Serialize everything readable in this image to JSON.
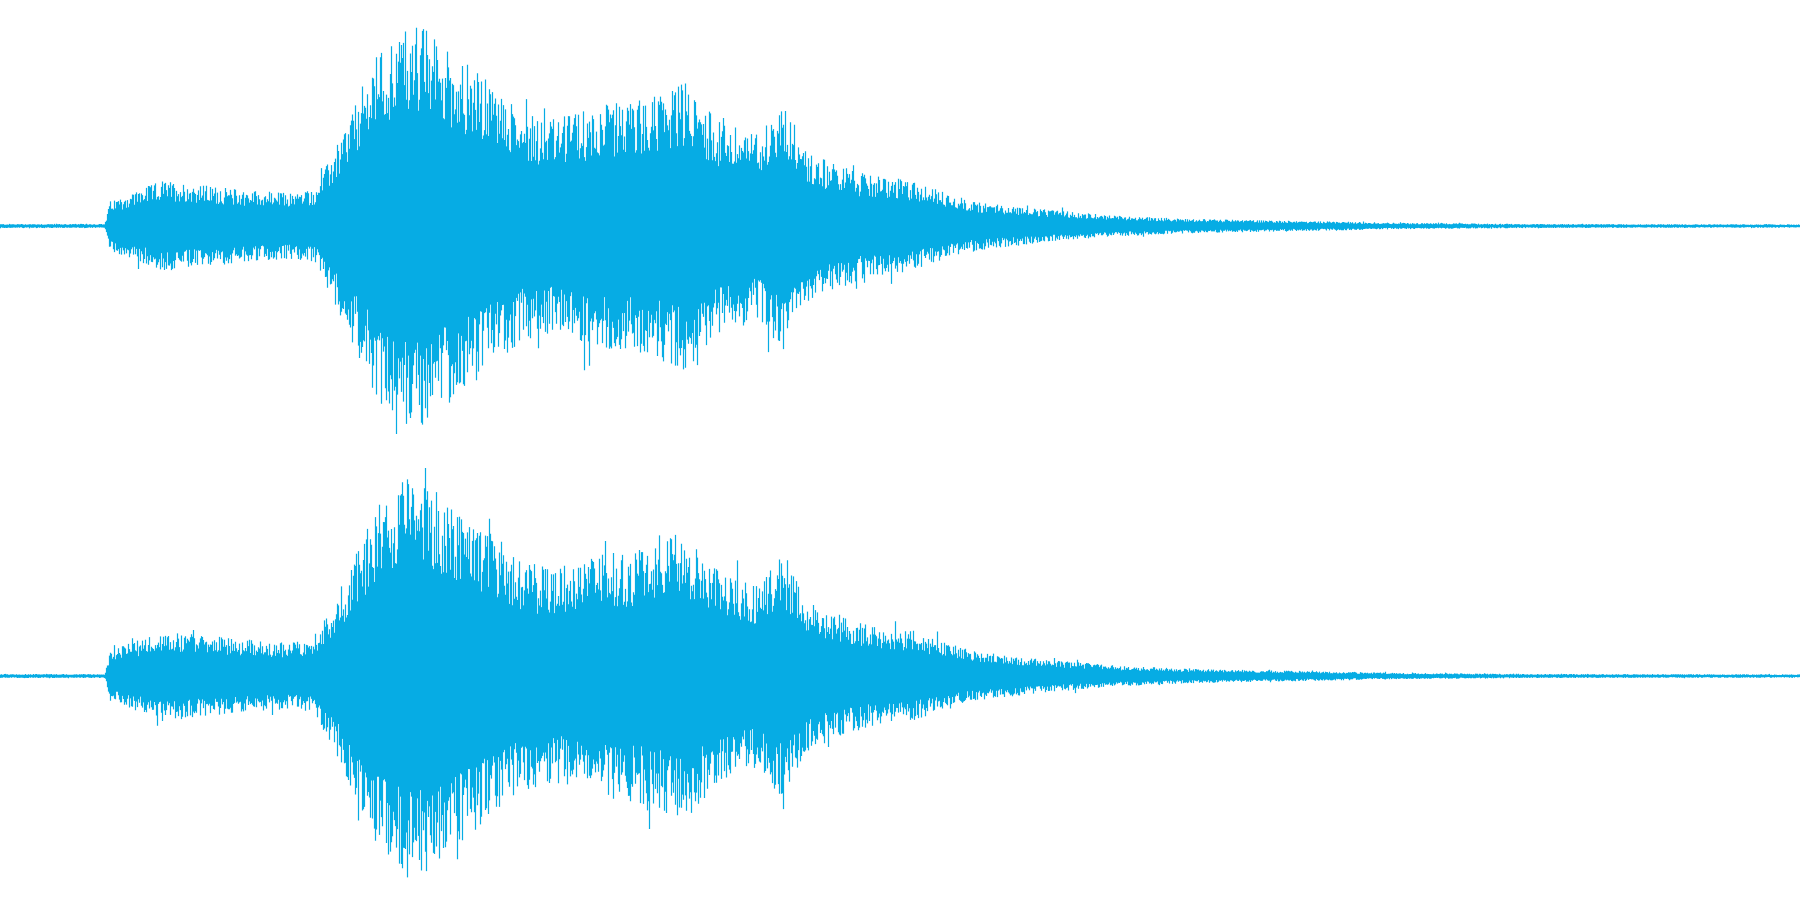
{
  "waveform": {
    "color": "#06ace4",
    "channel_count": 2,
    "channels": [
      {
        "name": "channel-1"
      },
      {
        "name": "channel-2"
      }
    ],
    "envelope": [
      {
        "t": 0.0,
        "a": 0.01
      },
      {
        "t": 0.058,
        "a": 0.01
      },
      {
        "t": 0.061,
        "a": 0.12
      },
      {
        "t": 0.09,
        "a": 0.22
      },
      {
        "t": 0.13,
        "a": 0.18
      },
      {
        "t": 0.16,
        "a": 0.16
      },
      {
        "t": 0.175,
        "a": 0.18
      },
      {
        "t": 0.19,
        "a": 0.45
      },
      {
        "t": 0.21,
        "a": 0.85
      },
      {
        "t": 0.23,
        "a": 1.0
      },
      {
        "t": 0.26,
        "a": 0.78
      },
      {
        "t": 0.29,
        "a": 0.55
      },
      {
        "t": 0.31,
        "a": 0.52
      },
      {
        "t": 0.33,
        "a": 0.58
      },
      {
        "t": 0.36,
        "a": 0.62
      },
      {
        "t": 0.38,
        "a": 0.7
      },
      {
        "t": 0.4,
        "a": 0.5
      },
      {
        "t": 0.42,
        "a": 0.45
      },
      {
        "t": 0.435,
        "a": 0.6
      },
      {
        "t": 0.45,
        "a": 0.35
      },
      {
        "t": 0.48,
        "a": 0.25
      },
      {
        "t": 0.505,
        "a": 0.22
      },
      {
        "t": 0.54,
        "a": 0.12
      },
      {
        "t": 0.58,
        "a": 0.08
      },
      {
        "t": 0.62,
        "a": 0.05
      },
      {
        "t": 0.66,
        "a": 0.035
      },
      {
        "t": 0.72,
        "a": 0.025
      },
      {
        "t": 0.78,
        "a": 0.015
      },
      {
        "t": 0.85,
        "a": 0.01
      },
      {
        "t": 1.0,
        "a": 0.008
      }
    ]
  }
}
